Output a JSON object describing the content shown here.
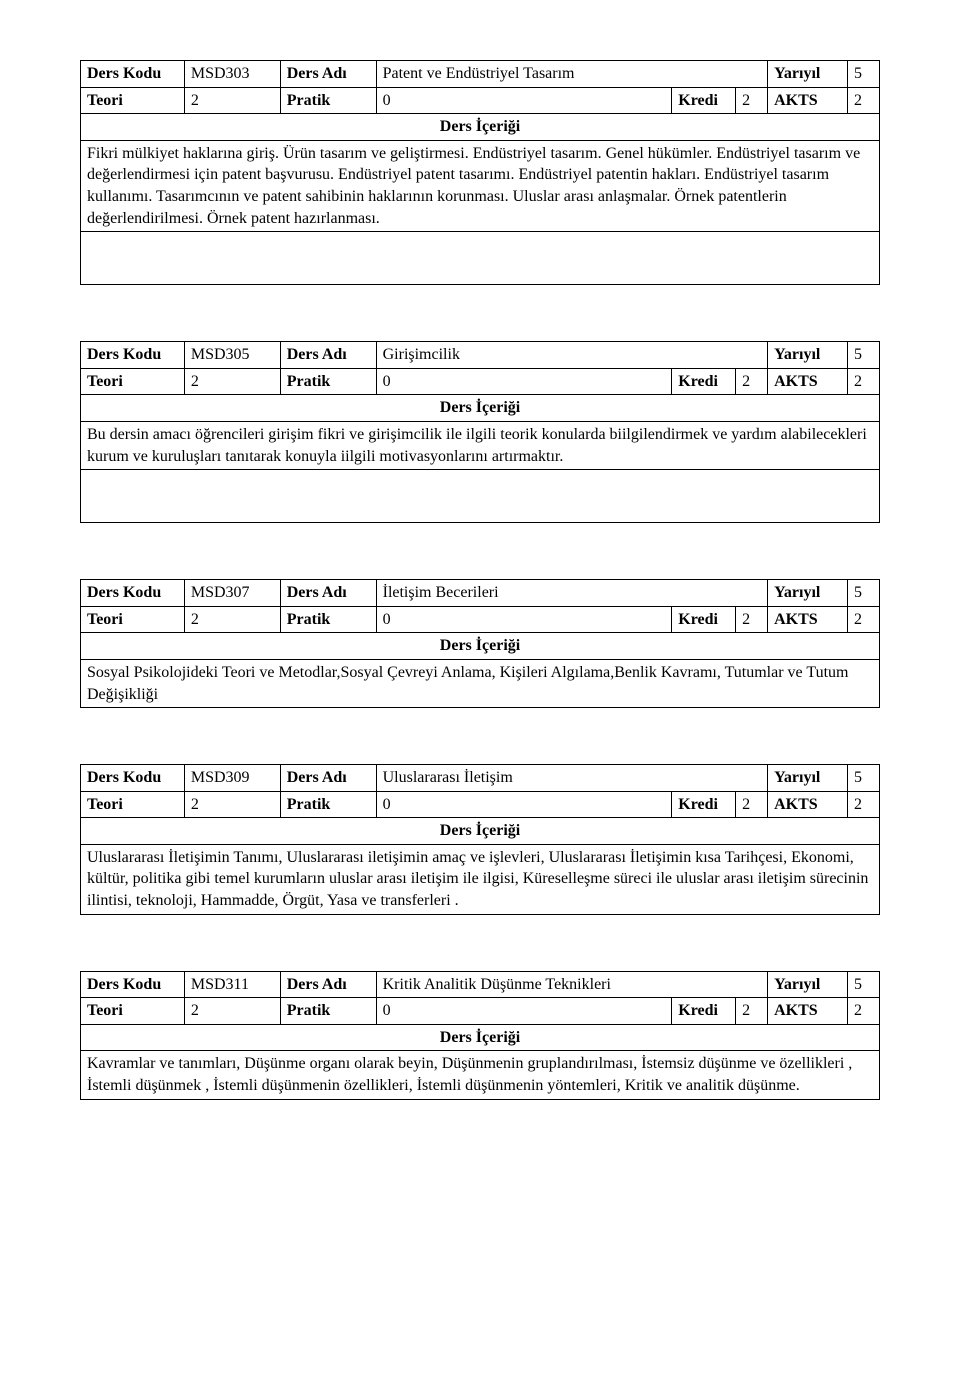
{
  "labels": {
    "ders_kodu": "Ders Kodu",
    "ders_adi": "Ders Adı",
    "yariyil": "Yarıyıl",
    "teori": "Teori",
    "pratik": "Pratik",
    "kredi": "Kredi",
    "akts": "AKTS",
    "ders_icerigi": "Ders İçeriği"
  },
  "courses": [
    {
      "code": "MSD303",
      "name": "Patent ve Endüstriyel Tasarım",
      "semester": "5",
      "theory": "2",
      "practice": "0",
      "credit": "2",
      "akts": "2",
      "content": "Fikri mülkiyet haklarına giriş. Ürün tasarım ve geliştirmesi. Endüstriyel tasarım. Genel hükümler. Endüstriyel tasarım ve değerlendirmesi için patent başvurusu. Endüstriyel patent tasarımı. Endüstriyel patentin hakları. Endüstriyel tasarım kullanımı. Tasarımcının ve patent sahibinin haklarının korunması. Uluslar arası anlaşmalar. Örnek patentlerin değerlendirilmesi. Örnek patent hazırlanması.",
      "extra_blank": true
    },
    {
      "code": "MSD305",
      "name": "Girişimcilik",
      "semester": "5",
      "theory": "2",
      "practice": "0",
      "credit": "2",
      "akts": "2",
      "content": "Bu dersin amacı öğrencileri girişim fikri ve girişimcilik ile ilgili teorik konularda biilgilendirmek ve yardım alabilecekleri kurum ve kuruluşları tanıtarak konuyla iilgili motivasyonlarını artırmaktır.",
      "extra_blank": true
    },
    {
      "code": "MSD307",
      "name": "İletişim Becerileri",
      "semester": "5",
      "theory": "2",
      "practice": "0",
      "credit": "2",
      "akts": "2",
      "content": "Sosyal Psikolojideki Teori ve Metodlar,Sosyal Çevreyi Anlama, Kişileri Algılama,Benlik Kavramı, Tutumlar ve Tutum Değişikliği",
      "extra_blank": false
    },
    {
      "code": "MSD309",
      "name": "Uluslararası İletişim",
      "semester": "5",
      "theory": "2",
      "practice": "0",
      "credit": "2",
      "akts": "2",
      "content": "Uluslararası İletişimin Tanımı, Uluslararası iletişimin amaç ve işlevleri, Uluslararası İletişimin kısa Tarihçesi, Ekonomi, kültür, politika gibi temel kurumların uluslar arası iletişim ile ilgisi, Küreselleşme süreci ile uluslar arası iletişim sürecinin ilintisi, teknoloji, Hammadde, Örgüt, Yasa ve transferleri .",
      "extra_blank": false
    },
    {
      "code": "MSD311",
      "name": "Kritik Analitik Düşünme Teknikleri",
      "semester": "5",
      "theory": "2",
      "practice": "0",
      "credit": "2",
      "akts": "2",
      "content": "Kavramlar ve tanımları, Düşünme organı olarak beyin, Düşünmenin gruplandırılması, İstemsiz düşünme ve özellikleri , İstemli düşünmek , İstemli düşünmenin özellikleri, İstemli düşünmenin yöntemleri, Kritik ve analitik düşünme.",
      "extra_blank": false
    }
  ]
}
